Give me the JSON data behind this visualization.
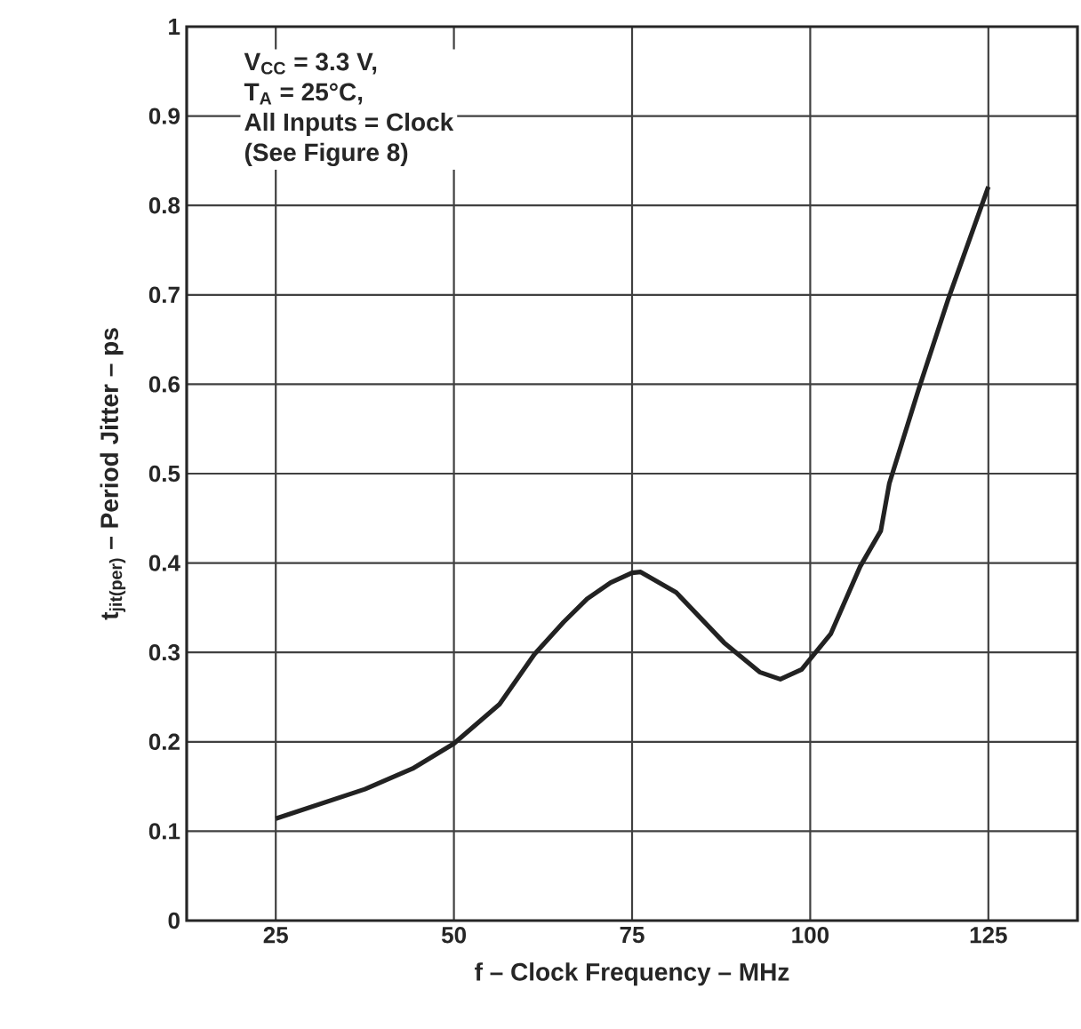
{
  "chart_data": {
    "type": "line",
    "xlabel": "f – Clock Frequency – MHz",
    "ylabel": "t$_{jit(per)}$  – Period Jitter – ps",
    "annotations": [
      "V$_{CC}$ = 3.3 V,",
      "T$_{A}$ = 25°C,",
      "All Inputs = Clock",
      "(See Figure 8)"
    ],
    "x": [
      25,
      37.5,
      44.2,
      50,
      56.4,
      61.3,
      65.4,
      68.7,
      72,
      75,
      76.2,
      81.2,
      87.9,
      92.9,
      95.8,
      98.8,
      102.9,
      107,
      109.9,
      111.1,
      115.2,
      119.4,
      125
    ],
    "series": [
      {
        "color": "#222222",
        "values": [
          0.114,
          0.147,
          0.17,
          0.198,
          0.242,
          0.298,
          0.334,
          0.36,
          0.378,
          0.389,
          0.39,
          0.367,
          0.311,
          0.278,
          0.27,
          0.281,
          0.321,
          0.396,
          0.436,
          0.489,
          0.594,
          0.696,
          0.821
        ]
      }
    ],
    "xlim": [
      12.5,
      137.5
    ],
    "ylim": [
      0,
      1
    ],
    "xticks": [
      25,
      50,
      75,
      100,
      125
    ],
    "yticks": [
      0,
      0.1,
      0.2,
      0.3,
      0.4,
      0.5,
      0.6,
      0.7,
      0.8,
      0.9,
      1
    ],
    "grid": true,
    "marker": "none",
    "line_style": "solid"
  }
}
